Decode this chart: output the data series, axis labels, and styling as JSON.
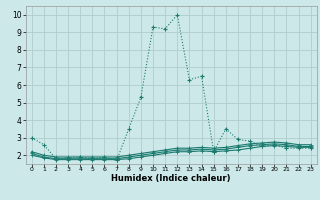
{
  "title": "",
  "xlabel": "Humidex (Indice chaleur)",
  "ylabel": "",
  "bg_color": "#cce8e8",
  "line_color": "#1a7a6e",
  "grid_color": "#b0cccc",
  "xlim": [
    -0.5,
    23.5
  ],
  "ylim": [
    1.5,
    10.5
  ],
  "xticks": [
    0,
    1,
    2,
    3,
    4,
    5,
    6,
    7,
    8,
    9,
    10,
    11,
    12,
    13,
    14,
    15,
    16,
    17,
    18,
    19,
    20,
    21,
    22,
    23
  ],
  "yticks": [
    2,
    3,
    4,
    5,
    6,
    7,
    8,
    9,
    10
  ],
  "series": [
    {
      "x": [
        0,
        1,
        2,
        3,
        4,
        5,
        6,
        7,
        8,
        9,
        10,
        11,
        12,
        13,
        14,
        15,
        16,
        17,
        18,
        19,
        20,
        21,
        22,
        23
      ],
      "y": [
        3.0,
        2.6,
        1.8,
        1.85,
        1.9,
        1.8,
        1.9,
        1.7,
        3.5,
        5.3,
        9.3,
        9.2,
        10.0,
        6.3,
        6.5,
        2.2,
        3.5,
        2.9,
        2.8,
        2.5,
        2.6,
        2.4,
        2.4,
        2.4
      ]
    },
    {
      "x": [
        0,
        1,
        2,
        3,
        4,
        5,
        6,
        7,
        8,
        9,
        10,
        11,
        12,
        13,
        14,
        15,
        16,
        17,
        18,
        19,
        20,
        21,
        22,
        23
      ],
      "y": [
        2.0,
        1.85,
        1.75,
        1.75,
        1.75,
        1.75,
        1.75,
        1.75,
        1.8,
        1.9,
        2.0,
        2.1,
        2.2,
        2.2,
        2.25,
        2.2,
        2.25,
        2.3,
        2.4,
        2.5,
        2.55,
        2.5,
        2.45,
        2.45
      ]
    },
    {
      "x": [
        0,
        1,
        2,
        3,
        4,
        5,
        6,
        7,
        8,
        9,
        10,
        11,
        12,
        13,
        14,
        15,
        16,
        17,
        18,
        19,
        20,
        21,
        22,
        23
      ],
      "y": [
        2.1,
        1.9,
        1.8,
        1.8,
        1.8,
        1.8,
        1.8,
        1.8,
        1.9,
        2.0,
        2.1,
        2.2,
        2.3,
        2.3,
        2.35,
        2.3,
        2.35,
        2.45,
        2.55,
        2.6,
        2.65,
        2.6,
        2.5,
        2.5
      ]
    },
    {
      "x": [
        0,
        1,
        2,
        3,
        4,
        5,
        6,
        7,
        8,
        9,
        10,
        11,
        12,
        13,
        14,
        15,
        16,
        17,
        18,
        19,
        20,
        21,
        22,
        23
      ],
      "y": [
        2.2,
        2.0,
        1.9,
        1.9,
        1.9,
        1.9,
        1.9,
        1.9,
        2.0,
        2.1,
        2.2,
        2.3,
        2.4,
        2.4,
        2.45,
        2.4,
        2.45,
        2.55,
        2.65,
        2.7,
        2.75,
        2.7,
        2.6,
        2.6
      ]
    }
  ]
}
